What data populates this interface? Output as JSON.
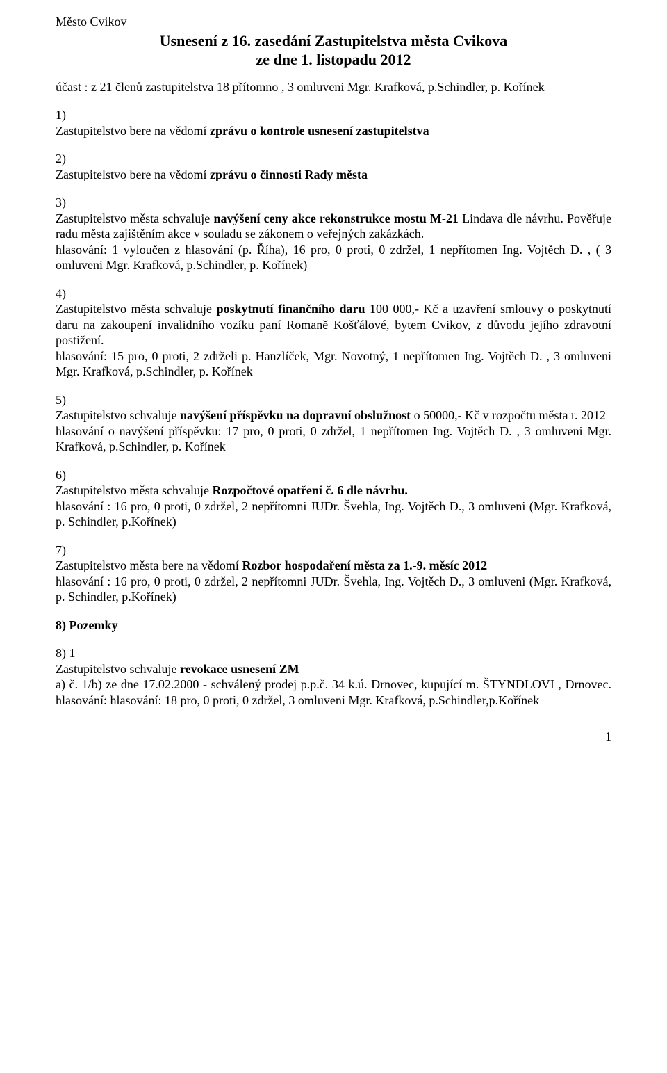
{
  "header": {
    "top_left": "Město Cvikov",
    "title": "Usnesení z 16. zasedání Zastupitelstva města Cvikova",
    "subtitle": "ze dne  1. listopadu   2012"
  },
  "attendance": "účast :     z    21 členů zastupitelstva  18 přítomno ,  3 omluveni Mgr. Krafková, p.Schindler, p. Kořínek",
  "items": {
    "i1": {
      "head": "1)",
      "line1_pre": "Zastupitelstvo bere na vědomí ",
      "line1_bold": "zprávu o kontrole  usnesení zastupitelstva"
    },
    "i2": {
      "head": "2)",
      "line1_pre": "Zastupitelstvo bere na vědomí ",
      "line1_bold": "zprávu o  činnosti Rady města"
    },
    "i3": {
      "head": "3)",
      "line1_pre": "Zastupitelstvo města schvaluje ",
      "line1_bold": "navýšení ceny akce rekonstrukce mostu M-21",
      "line1_post": " Lindava dle návrhu. Pověřuje radu města zajištěním akce  v souladu se zákonem o veřejných zakázkách.",
      "vote": "hlasování: 1 vyloučen z hlasování (p. Říha), 16 pro, 0 proti, 0 zdržel, 1 nepřítomen Ing. Vojtěch D. , ( 3 omluveni  Mgr. Krafková, p.Schindler, p. Kořínek)"
    },
    "i4": {
      "head": "4)",
      "line1_pre": "Zastupitelstvo města schvaluje ",
      "line1_bold": "poskytnutí finančního daru",
      "line1_post": " 100 000,- Kč a uzavření smlouvy o poskytnutí daru  na zakoupení invalidního vozíku  paní Romaně  Košťálové, bytem Cvikov, z důvodu jejího zdravotní postižení.",
      "vote": "hlasování: 15 pro, 0 proti, 2 zdrželi  p. Hanzlíček, Mgr. Novotný, 1 nepřítomen Ing. Vojtěch D. , 3 omluveni  Mgr. Krafková, p.Schindler, p. Kořínek"
    },
    "i5": {
      "head": "5)",
      "line1_pre": "Zastupitelstvo schvaluje ",
      "line1_bold": "navýšení příspěvku na dopravní obslužnost",
      "line1_post": "  o 50000,- Kč v rozpočtu města r. 2012",
      "vote": "hlasování o navýšení příspěvku: 17 pro, 0 proti, 0 zdržel, 1 nepřítomen Ing. Vojtěch D. , 3 omluveni Mgr. Krafková, p.Schindler, p. Kořínek"
    },
    "i6": {
      "head": "6)",
      "line1_pre": "Zastupitelstvo města schvaluje ",
      "line1_bold": "Rozpočtové opatření č. 6 dle návrhu.",
      "vote": "hlasování :  16 pro, 0 proti, 0 zdržel, 2 nepřítomni JUDr. Švehla, Ing. Vojtěch D., 3 omluveni (Mgr. Krafková, p. Schindler, p.Kořínek)"
    },
    "i7": {
      "head": "7)",
      "line1_pre": "Zastupitelstvo města bere na vědomí ",
      "line1_bold": "Rozbor hospodaření města za 1.-9. měsíc 2012",
      "vote": "hlasování :  16 pro, 0 proti, 0 zdržel, 2 nepřítomni JUDr. Švehla, Ing. Vojtěch D., 3 omluveni (Mgr. Krafková, p. Schindler, p.Kořínek)"
    },
    "i8": {
      "head": "8)  Pozemky"
    },
    "i81": {
      "head": "8) 1",
      "line1_pre": "Zastupitelstvo schvaluje  ",
      "line1_bold": "revokace usnesení ZM",
      "line2": "a) č. 1/b) ze dne 17.02.2000 - schválený prodej p.p.č. 34 k.ú. Drnovec, kupující m. ŠTYNDLOVI , Drnovec. hlasování: hlasování: 18 pro, 0 proti, 0 zdržel, 3 omluveni Mgr. Krafková, p.Schindler,p.Kořínek"
    }
  },
  "page_number": "1",
  "style": {
    "font_family": "Times New Roman",
    "body_font_size_pt": 13,
    "title_font_size_pt": 16,
    "text_color": "#000000",
    "background_color": "#ffffff"
  }
}
